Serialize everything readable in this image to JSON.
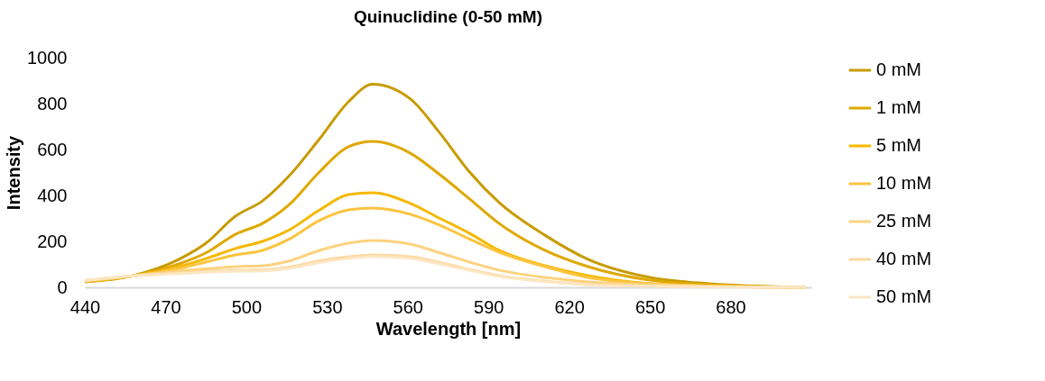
{
  "chart_data": {
    "type": "line",
    "title": "Quinuclidine (0-50 mM)",
    "xlabel": "Wavelength [nm]",
    "ylabel": "Intensity",
    "x": [
      440,
      458,
      475,
      485,
      496,
      506,
      516,
      527,
      538,
      547,
      561,
      572,
      583,
      594,
      611,
      627,
      650,
      672,
      708
    ],
    "xlim": [
      440,
      710
    ],
    "xticks": [
      440,
      470,
      500,
      530,
      560,
      590,
      620,
      650,
      680
    ],
    "ylim": [
      0,
      1000
    ],
    "yticks": [
      0,
      200,
      400,
      600,
      800,
      1000
    ],
    "grid": false,
    "legend": "right",
    "marker": "none",
    "line_style": "solid",
    "series": [
      {
        "name": "0 mM",
        "color": "#c89b00",
        "values": [
          24,
          51,
          122,
          192,
          310,
          376,
          486,
          643,
          808,
          884,
          820,
          671,
          502,
          369,
          227,
          122,
          43,
          16,
          0
        ]
      },
      {
        "name": "1 mM",
        "color": "#dfa800",
        "values": [
          24,
          50,
          102,
          150,
          231,
          278,
          360,
          500,
          612,
          635,
          584,
          490,
          385,
          278,
          161,
          90,
          31,
          12,
          0
        ]
      },
      {
        "name": "5 mM",
        "color": "#f5b800",
        "values": [
          26,
          50,
          90,
          125,
          169,
          200,
          250,
          335,
          404,
          412,
          365,
          300,
          235,
          161,
          94,
          51,
          16,
          6,
          0
        ]
      },
      {
        "name": "10 mM",
        "color": "#fbc440",
        "values": [
          26,
          50,
          82,
          110,
          141,
          161,
          210,
          290,
          337,
          345,
          318,
          270,
          210,
          153,
          90,
          43,
          16,
          6,
          0
        ]
      },
      {
        "name": "25 mM",
        "color": "#fdd27f",
        "values": [
          28,
          50,
          71,
          80,
          90,
          94,
          115,
          160,
          192,
          204,
          188,
          150,
          110,
          75,
          43,
          24,
          12,
          5,
          0
        ]
      },
      {
        "name": "40 mM",
        "color": "#fdd9a0",
        "values": [
          30,
          50,
          63,
          70,
          75,
          76,
          88,
          115,
          133,
          141,
          133,
          108,
          78,
          51,
          27,
          12,
          6,
          3,
          0
        ]
      },
      {
        "name": "50 mM",
        "color": "#fde6c3",
        "values": [
          30,
          50,
          60,
          66,
          70,
          72,
          82,
          108,
          126,
          134,
          126,
          102,
          74,
          48,
          25,
          11,
          5,
          2,
          0
        ]
      }
    ]
  }
}
